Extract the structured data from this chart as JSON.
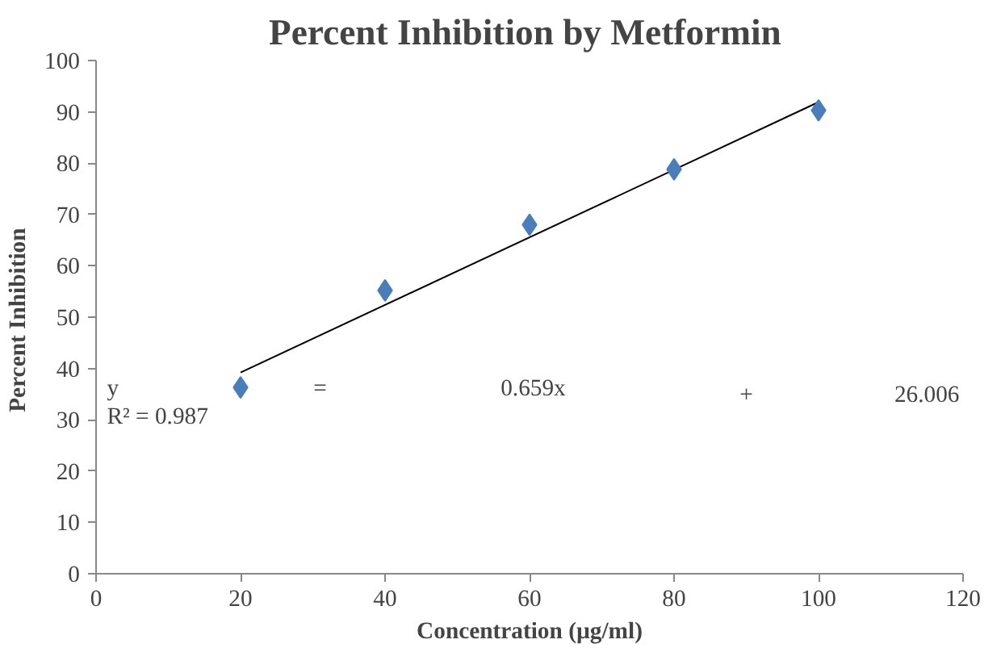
{
  "chart_data": {
    "type": "scatter",
    "title": "Percent Inhibition  by Metformin",
    "xlabel": "Concentration (µg/ml)",
    "ylabel": "Percent  Inhibition",
    "x": [
      20,
      40,
      60,
      80,
      100
    ],
    "series": [
      {
        "color": "#4a7ebb",
        "values": [
          36.3,
          55.2,
          68.0,
          78.8,
          90.3
        ],
        "marker": "diamond"
      },
      {
        "type": "line",
        "color": "#000000",
        "x": [
          20,
          100
        ],
        "values": [
          39.2,
          91.9
        ],
        "marker": "none"
      }
    ],
    "xlim": [
      0,
      120
    ],
    "xticks": [
      0,
      20,
      40,
      60,
      80,
      100,
      120
    ],
    "ylim": [
      0,
      100
    ],
    "yticks": [
      0,
      10,
      20,
      30,
      40,
      50,
      60,
      70,
      80,
      90,
      100
    ],
    "grid": false,
    "annotations": [
      "y = 0.659x + 26.006",
      "R² = 0.987"
    ]
  }
}
